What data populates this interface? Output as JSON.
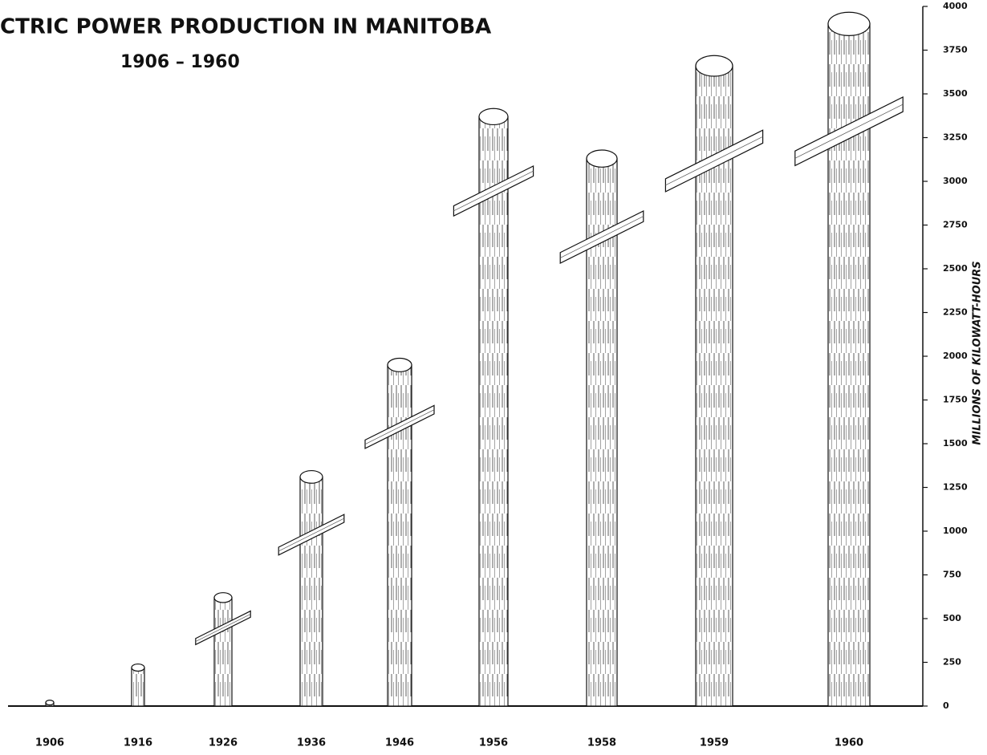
{
  "chart_data": {
    "type": "bar",
    "title": "CTRIC POWER PRODUCTION IN MANITOBA",
    "subtitle": "1906 – 1960",
    "y_label": "MILLIONS OF KILOWATT-HOURS",
    "categories": [
      "1906",
      "1916",
      "1926",
      "1936",
      "1946",
      "1956",
      "1958",
      "1959",
      "1960"
    ],
    "values": [
      20,
      220,
      620,
      1310,
      1950,
      3370,
      3130,
      3660,
      3900
    ],
    "color": "#ffffff",
    "ylim": [
      0,
      4000
    ],
    "yticks": [
      0,
      250,
      500,
      750,
      1000,
      1250,
      1500,
      1750,
      2000,
      2250,
      2500,
      2750,
      3000,
      3250,
      3500,
      3750,
      4000
    ],
    "grid": false
  }
}
